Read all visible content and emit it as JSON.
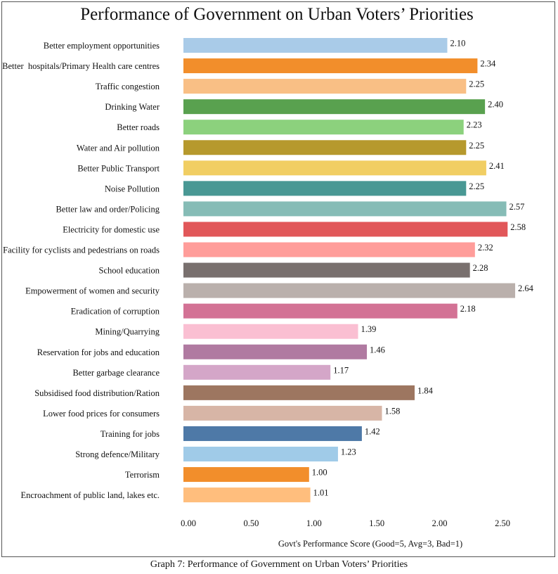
{
  "caption": "Graph 7: Performance of Government on Urban Voters’ Priorities",
  "chart_data": {
    "type": "bar",
    "orientation": "horizontal",
    "title": "Performance of Government on Urban Voters’ Priorities",
    "xlabel": "Govt's Performance Score (Good=5, Avg=3, Bad=1)",
    "ylabel": "",
    "xlim": [
      0,
      2.64
    ],
    "xticks": [
      "0.00",
      "0.50",
      "1.00",
      "1.50",
      "2.00",
      "2.50"
    ],
    "grid": false,
    "data_labels": true,
    "bars": [
      {
        "category": "Better employment opportunities",
        "value": 2.1,
        "label": "2.10",
        "color": "#a9cbe8"
      },
      {
        "category": "Better  hospitals/Primary Health care centres",
        "value": 2.34,
        "label": "2.34",
        "color": "#f28e2b"
      },
      {
        "category": "Traffic congestion",
        "value": 2.25,
        "label": "2.25",
        "color": "#f9bf85"
      },
      {
        "category": "Drinking Water",
        "value": 2.4,
        "label": "2.40",
        "color": "#59a14f"
      },
      {
        "category": "Better roads",
        "value": 2.23,
        "label": "2.23",
        "color": "#8cd17d"
      },
      {
        "category": "Water and Air pollution",
        "value": 2.25,
        "label": "2.25",
        "color": "#b6992d"
      },
      {
        "category": "Better Public Transport",
        "value": 2.41,
        "label": "2.41",
        "color": "#f1ce63"
      },
      {
        "category": "Noise Pollution",
        "value": 2.25,
        "label": "2.25",
        "color": "#499894"
      },
      {
        "category": "Better law and order/Policing",
        "value": 2.57,
        "label": "2.57",
        "color": "#86bcb6"
      },
      {
        "category": "Electricity for domestic use",
        "value": 2.58,
        "label": "2.58",
        "color": "#e15759"
      },
      {
        "category": "Facility for cyclists and pedestrians on roads",
        "value": 2.32,
        "label": "2.32",
        "color": "#ff9d9a"
      },
      {
        "category": "School education",
        "value": 2.28,
        "label": "2.28",
        "color": "#79706e"
      },
      {
        "category": "Empowerment of women and security",
        "value": 2.64,
        "label": "2.64",
        "color": "#bab0ac"
      },
      {
        "category": "Eradication of corruption",
        "value": 2.18,
        "label": "2.18",
        "color": "#d37295"
      },
      {
        "category": "Mining/Quarrying",
        "value": 1.39,
        "label": "1.39",
        "color": "#fabfd2"
      },
      {
        "category": "Reservation for jobs and education",
        "value": 1.46,
        "label": "1.46",
        "color": "#b07aa1"
      },
      {
        "category": "Better garbage clearance",
        "value": 1.17,
        "label": "1.17",
        "color": "#d4a6c8"
      },
      {
        "category": "Subsidised food distribution/Ration",
        "value": 1.84,
        "label": "1.84",
        "color": "#9d7660"
      },
      {
        "category": "Lower food prices for consumers",
        "value": 1.58,
        "label": "1.58",
        "color": "#d7b5a6"
      },
      {
        "category": "Training for jobs",
        "value": 1.42,
        "label": "1.42",
        "color": "#4e79a7"
      },
      {
        "category": "Strong defence/Military",
        "value": 1.23,
        "label": "1.23",
        "color": "#a0cbe8"
      },
      {
        "category": "Terrorism",
        "value": 1.0,
        "label": "1.00",
        "color": "#f28e2b"
      },
      {
        "category": "Encroachment of public land, lakes etc.",
        "value": 1.01,
        "label": "1.01",
        "color": "#ffbe7d"
      }
    ]
  }
}
